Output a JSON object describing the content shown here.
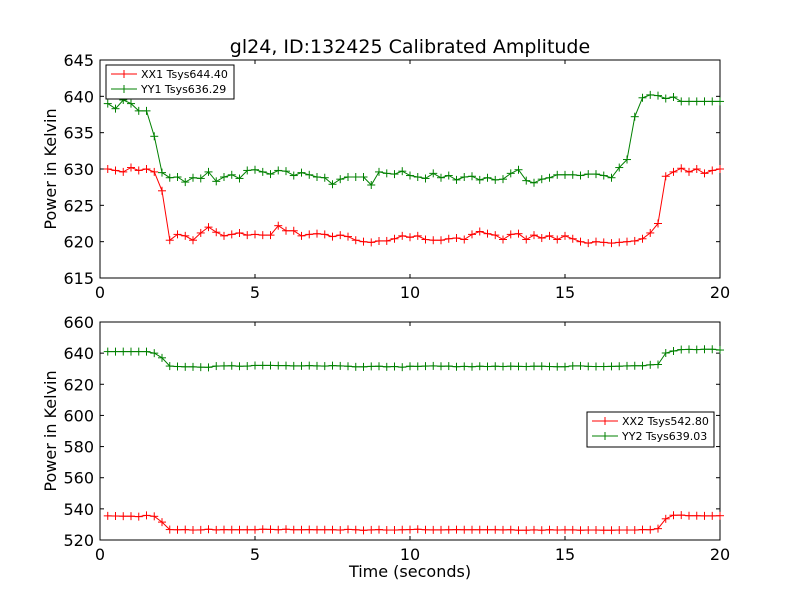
{
  "figure": {
    "title": "gl24, ID:132425 Calibrated Amplitude",
    "xlabel": "Time (seconds)"
  },
  "chart_data": [
    {
      "type": "line",
      "title": "gl24, ID:132425 Calibrated Amplitude",
      "xlabel": "",
      "ylabel": "Power in Kelvin",
      "xlim": [
        0,
        20
      ],
      "ylim": [
        615,
        645
      ],
      "xticks": [
        0,
        5,
        10,
        15,
        20
      ],
      "yticks": [
        615,
        620,
        625,
        630,
        635,
        640,
        645
      ],
      "grid": false,
      "legend_position": "top-left",
      "x": [
        0.25,
        0.5,
        0.75,
        1.0,
        1.25,
        1.5,
        1.75,
        2.0,
        2.25,
        2.5,
        2.75,
        3.0,
        3.25,
        3.5,
        3.75,
        4.0,
        4.25,
        4.5,
        4.75,
        5.0,
        5.25,
        5.5,
        5.75,
        6.0,
        6.25,
        6.5,
        6.75,
        7.0,
        7.25,
        7.5,
        7.75,
        8.0,
        8.25,
        8.5,
        8.75,
        9.0,
        9.25,
        9.5,
        9.75,
        10.0,
        10.25,
        10.5,
        10.75,
        11.0,
        11.25,
        11.5,
        11.75,
        12.0,
        12.25,
        12.5,
        12.75,
        13.0,
        13.25,
        13.5,
        13.75,
        14.0,
        14.25,
        14.5,
        14.75,
        15.0,
        15.25,
        15.5,
        15.75,
        16.0,
        16.25,
        16.5,
        16.75,
        17.0,
        17.25,
        17.5,
        17.75,
        18.0,
        18.25,
        18.5,
        18.75,
        19.0,
        19.25,
        19.5,
        19.75,
        20.0
      ],
      "series": [
        {
          "name": "XX1 Tsys644.40",
          "color": "#ff0000",
          "values": [
            630.0,
            629.8,
            629.6,
            630.2,
            629.8,
            630.0,
            629.6,
            627.0,
            620.2,
            621.0,
            620.8,
            620.2,
            621.2,
            622.0,
            621.3,
            620.8,
            621.0,
            621.2,
            620.9,
            621.0,
            620.9,
            620.9,
            622.2,
            621.5,
            621.5,
            620.8,
            621.0,
            621.1,
            621.0,
            620.7,
            620.9,
            620.7,
            620.2,
            620.0,
            619.9,
            620.1,
            620.1,
            620.4,
            620.8,
            620.6,
            620.8,
            620.3,
            620.2,
            620.2,
            620.4,
            620.5,
            620.3,
            621.0,
            621.4,
            621.1,
            620.9,
            620.3,
            621.0,
            621.1,
            620.3,
            620.9,
            620.5,
            620.8,
            620.3,
            620.8,
            620.4,
            620.0,
            619.8,
            620.0,
            619.9,
            619.8,
            619.9,
            620.0,
            620.1,
            620.4,
            621.2,
            622.5,
            629.0,
            629.6,
            630.1,
            629.6,
            630.0,
            629.4,
            629.8,
            630.0
          ]
        },
        {
          "name": "YY1 Tsys636.29",
          "color": "#008000",
          "values": [
            639.0,
            638.3,
            639.5,
            639.0,
            638.0,
            638.0,
            634.5,
            629.5,
            628.8,
            628.9,
            628.2,
            628.8,
            628.7,
            629.6,
            628.3,
            628.9,
            629.2,
            628.7,
            629.8,
            629.9,
            629.6,
            629.3,
            629.8,
            629.7,
            629.1,
            629.5,
            629.2,
            628.9,
            628.8,
            627.9,
            628.6,
            628.9,
            628.9,
            628.9,
            627.8,
            629.6,
            629.4,
            629.3,
            629.7,
            629.1,
            628.9,
            628.7,
            629.4,
            628.8,
            629.1,
            628.5,
            628.9,
            629.0,
            628.5,
            628.8,
            628.5,
            628.6,
            629.4,
            629.9,
            628.4,
            628.1,
            628.6,
            628.8,
            629.2,
            629.2,
            629.2,
            629.1,
            629.3,
            629.3,
            629.1,
            628.8,
            630.2,
            631.3,
            637.2,
            639.8,
            640.2,
            640.1,
            639.7,
            639.9,
            639.3,
            639.3,
            639.3,
            639.3,
            639.3,
            639.3
          ]
        }
      ]
    },
    {
      "type": "line",
      "title": "",
      "xlabel": "Time (seconds)",
      "ylabel": "Power in Kelvin",
      "xlim": [
        0,
        20
      ],
      "ylim": [
        520,
        660
      ],
      "xticks": [
        0,
        5,
        10,
        15,
        20
      ],
      "yticks": [
        520,
        540,
        560,
        580,
        600,
        620,
        640,
        660
      ],
      "grid": false,
      "legend_position": "right",
      "x": [
        0.25,
        0.5,
        0.75,
        1.0,
        1.25,
        1.5,
        1.75,
        2.0,
        2.25,
        2.5,
        2.75,
        3.0,
        3.25,
        3.5,
        3.75,
        4.0,
        4.25,
        4.5,
        4.75,
        5.0,
        5.25,
        5.5,
        5.75,
        6.0,
        6.25,
        6.5,
        6.75,
        7.0,
        7.25,
        7.5,
        7.75,
        8.0,
        8.25,
        8.5,
        8.75,
        9.0,
        9.25,
        9.5,
        9.75,
        10.0,
        10.25,
        10.5,
        10.75,
        11.0,
        11.25,
        11.5,
        11.75,
        12.0,
        12.25,
        12.5,
        12.75,
        13.0,
        13.25,
        13.5,
        13.75,
        14.0,
        14.25,
        14.5,
        14.75,
        15.0,
        15.25,
        15.5,
        15.75,
        16.0,
        16.25,
        16.5,
        16.75,
        17.0,
        17.25,
        17.5,
        17.75,
        18.0,
        18.25,
        18.5,
        18.75,
        19.0,
        19.25,
        19.5,
        19.75,
        20.0
      ],
      "series": [
        {
          "name": "XX2 Tsys542.80",
          "color": "#ff0000",
          "values": [
            535.5,
            535.4,
            535.3,
            535.3,
            535.0,
            535.8,
            535.2,
            531.5,
            526.7,
            526.6,
            526.7,
            526.4,
            526.5,
            526.9,
            526.5,
            526.7,
            526.6,
            526.6,
            526.6,
            526.6,
            526.9,
            526.8,
            526.6,
            526.9,
            526.6,
            526.6,
            526.7,
            526.6,
            526.6,
            526.6,
            526.4,
            526.8,
            526.6,
            526.2,
            526.5,
            526.7,
            526.4,
            526.4,
            526.6,
            526.7,
            526.9,
            526.6,
            526.5,
            526.5,
            526.6,
            526.7,
            526.6,
            526.6,
            526.6,
            526.6,
            526.6,
            526.5,
            526.6,
            526.3,
            526.3,
            526.5,
            526.3,
            526.6,
            526.4,
            526.5,
            526.5,
            526.3,
            526.4,
            526.4,
            526.3,
            526.3,
            526.4,
            526.4,
            526.4,
            526.7,
            526.6,
            527.3,
            533.6,
            535.9,
            536.0,
            535.6,
            535.6,
            535.5,
            535.5,
            535.6
          ]
        },
        {
          "name": "YY2 Tsys639.03",
          "color": "#008000",
          "values": [
            641.0,
            641.0,
            641.0,
            641.0,
            641.0,
            641.0,
            640.0,
            637.0,
            631.7,
            631.4,
            631.2,
            631.2,
            631.0,
            630.9,
            631.7,
            631.8,
            631.9,
            631.6,
            631.7,
            632.1,
            632.1,
            632.1,
            632.0,
            632.0,
            631.8,
            631.8,
            632.0,
            631.8,
            631.7,
            632.0,
            631.8,
            631.6,
            631.2,
            631.2,
            631.5,
            631.6,
            631.2,
            631.4,
            631.0,
            631.6,
            631.5,
            631.7,
            631.8,
            631.6,
            631.7,
            631.3,
            631.5,
            631.3,
            631.6,
            631.4,
            631.6,
            631.4,
            631.6,
            631.5,
            631.4,
            631.6,
            631.6,
            631.4,
            631.3,
            631.3,
            631.8,
            631.8,
            631.5,
            631.4,
            631.4,
            631.5,
            631.6,
            631.8,
            631.9,
            631.9,
            632.5,
            632.7,
            640.1,
            641.4,
            642.3,
            642.4,
            642.3,
            642.5,
            642.5,
            642.0
          ]
        }
      ]
    }
  ]
}
